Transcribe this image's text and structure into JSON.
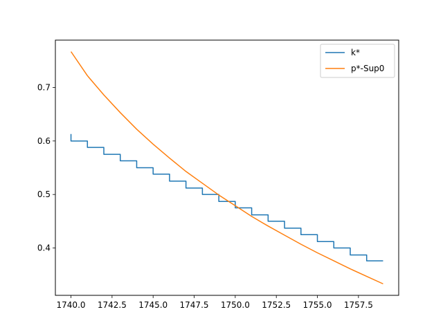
{
  "chart_data": {
    "type": "line",
    "title": "",
    "xlabel": "",
    "ylabel": "",
    "xlim": [
      1739.05,
      1759.95
    ],
    "ylim": [
      0.3115,
      0.7885
    ],
    "xticks": [
      1740.0,
      1742.5,
      1745.0,
      1747.5,
      1750.0,
      1752.5,
      1755.0,
      1757.5
    ],
    "xtick_labels": [
      "1740.0",
      "1742.5",
      "1745.0",
      "1747.5",
      "1750.0",
      "1752.5",
      "1755.0",
      "1757.5"
    ],
    "yticks": [
      0.4,
      0.5,
      0.6,
      0.7
    ],
    "ytick_labels": [
      "0.4",
      "0.5",
      "0.6",
      "0.7"
    ],
    "grid": false,
    "legend_position": "top-right",
    "series": [
      {
        "name": "k*",
        "color": "#1f77b4",
        "style": "step",
        "x": [
          1740,
          1740,
          1741,
          1741,
          1742,
          1742,
          1743,
          1743,
          1744,
          1744,
          1745,
          1745,
          1746,
          1746,
          1747,
          1747,
          1748,
          1748,
          1749,
          1749,
          1750,
          1750,
          1751,
          1751,
          1752,
          1752,
          1753,
          1753,
          1754,
          1754,
          1755,
          1755,
          1756,
          1756,
          1757,
          1757,
          1758,
          1758,
          1759
        ],
        "y": [
          0.613,
          0.6,
          0.6,
          0.588,
          0.588,
          0.575,
          0.575,
          0.563,
          0.563,
          0.55,
          0.55,
          0.538,
          0.538,
          0.525,
          0.525,
          0.512,
          0.512,
          0.5,
          0.5,
          0.487,
          0.487,
          0.475,
          0.475,
          0.462,
          0.462,
          0.45,
          0.45,
          0.437,
          0.437,
          0.425,
          0.425,
          0.412,
          0.412,
          0.4,
          0.4,
          0.387,
          0.387,
          0.376,
          0.376
        ]
      },
      {
        "name": "p*-Sup0",
        "color": "#ff7f0e",
        "style": "line",
        "x": [
          1740,
          1741,
          1742,
          1743,
          1744,
          1745,
          1746,
          1747,
          1748,
          1749,
          1750,
          1751,
          1752,
          1753,
          1754,
          1755,
          1756,
          1757,
          1758,
          1759
        ],
        "y": [
          0.767,
          0.722,
          0.686,
          0.653,
          0.622,
          0.594,
          0.568,
          0.543,
          0.521,
          0.499,
          0.479,
          0.459,
          0.441,
          0.424,
          0.407,
          0.391,
          0.376,
          0.361,
          0.347,
          0.333
        ]
      }
    ]
  }
}
